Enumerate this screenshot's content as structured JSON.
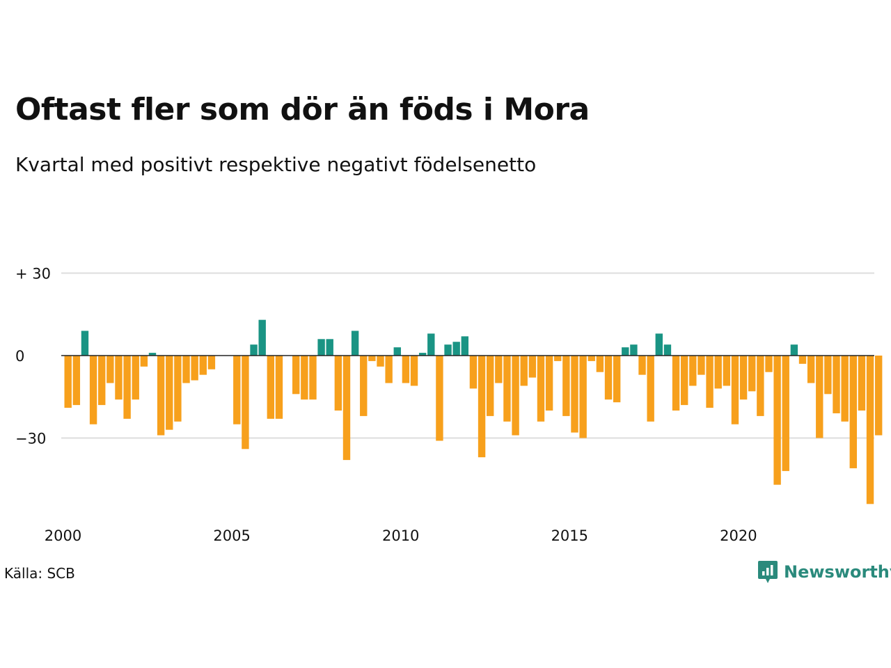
{
  "header": {
    "title": "Oftast fler som dör än föds i Mora",
    "subtitle": "Kvartal med positivt respektive negativt födelsenetto"
  },
  "footer": {
    "source": "Källa: SCB",
    "brand": "Newsworthy",
    "brand_icon": "newsworthy-logo-icon"
  },
  "colors": {
    "positive": "#1a9484",
    "negative": "#f7a01c",
    "grid": "#dddddd",
    "axis": "#222222",
    "brand": "#2a8a7c"
  },
  "chart_data": {
    "type": "bar",
    "title": "Oftast fler som dör än föds i Mora",
    "subtitle": "Kvartal med positivt respektive negativt födelsenetto",
    "x_start": "2000 Q1",
    "x_tick_labels": [
      "2000",
      "2005",
      "2010",
      "2015",
      "2020"
    ],
    "y_ticks": [
      30,
      0,
      -30
    ],
    "y_tick_labels": [
      "+ 30",
      "0",
      "−30"
    ],
    "ylim": [
      -54,
      30
    ],
    "grid": true,
    "values": [
      -19,
      -18,
      9,
      -25,
      -18,
      -10,
      -16,
      -23,
      -16,
      -4,
      1,
      -29,
      -27,
      -24,
      -10,
      -9,
      -7,
      -5,
      0,
      0,
      -25,
      -34,
      4,
      13,
      -23,
      -23,
      0,
      -14,
      -16,
      -16,
      6,
      6,
      -20,
      -38,
      9,
      -22,
      -2,
      -4,
      -10,
      3,
      -10,
      -11,
      1,
      8,
      -31,
      4,
      5,
      7,
      -12,
      -37,
      -22,
      -10,
      -24,
      -29,
      -11,
      -8,
      -24,
      -20,
      -2,
      -22,
      -28,
      -30,
      -2,
      -6,
      -16,
      -17,
      3,
      4,
      -7,
      -24,
      8,
      4,
      -20,
      -18,
      -11,
      -7,
      -19,
      -12,
      -11,
      -25,
      -16,
      -13,
      -22,
      -6,
      -47,
      -42,
      4,
      -3,
      -10,
      -30,
      -14,
      -21,
      -24,
      -41,
      -20,
      -54,
      -29
    ]
  }
}
